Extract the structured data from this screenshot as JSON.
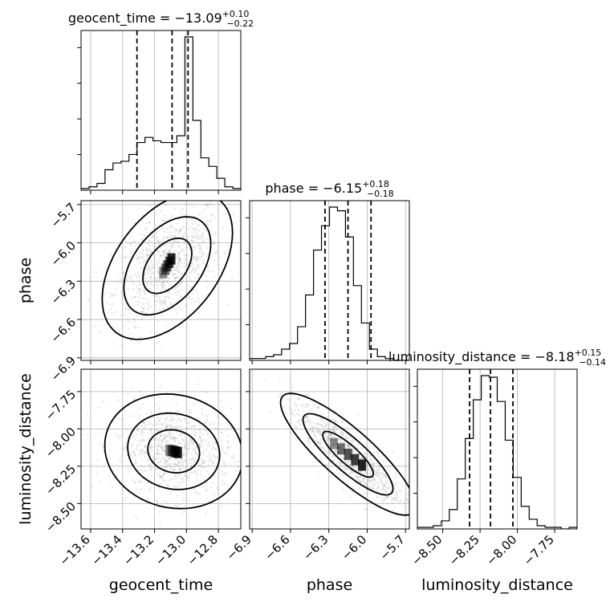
{
  "chart_data": {
    "type": "corner",
    "parameters": [
      "geocent_time",
      "phase",
      "luminosity_distance"
    ],
    "titles": [
      {
        "text": "geocent_time = −13.09",
        "sup": "+0.10",
        "sub": "−0.22"
      },
      {
        "text": "phase = −6.15",
        "sup": "+0.18",
        "sub": "−0.18"
      },
      {
        "text": "luminosity_distance = −8.18",
        "sup": "+0.15",
        "sub": "−0.14"
      }
    ],
    "ranges": [
      [
        -13.66,
        -12.66
      ],
      [
        -6.92,
        -5.67
      ],
      [
        -8.67,
        -7.6
      ]
    ],
    "ticks": {
      "geocent_time": {
        "values": [
          -13.6,
          -13.4,
          -13.2,
          -13.0,
          -12.8
        ],
        "labels": [
          "−13.6",
          "−13.4",
          "−13.2",
          "−13.0",
          "−12.8"
        ]
      },
      "phase": {
        "values": [
          -6.9,
          -6.6,
          -6.3,
          -6.0,
          -5.7
        ],
        "labels": [
          "−6.9",
          "−6.6",
          "−6.3",
          "−6.0",
          "−5.7"
        ]
      },
      "luminosity_distance": {
        "values": [
          -8.5,
          -8.25,
          -8.0,
          -7.75
        ],
        "labels": [
          "−8.50",
          "−8.25",
          "−8.00",
          "−7.75"
        ]
      }
    },
    "quantiles": [
      [
        -13.31,
        -13.09,
        -12.99
      ],
      [
        -6.33,
        -6.15,
        -5.97
      ],
      [
        -8.32,
        -8.18,
        -8.03
      ]
    ],
    "histograms": [
      {
        "edges_start": -13.66,
        "bin_width": 0.05,
        "counts": [
          1,
          2,
          4,
          12,
          16,
          17,
          21,
          28,
          31,
          29,
          28,
          28,
          32,
          90,
          41,
          19,
          14,
          7,
          2,
          1
        ]
      },
      {
        "edges_start": -6.92,
        "bin_width": 0.0625,
        "counts": [
          1,
          1,
          2,
          3,
          6,
          9,
          18,
          35,
          59,
          72,
          82,
          80,
          66,
          40,
          20,
          6,
          2,
          1,
          0,
          0
        ]
      },
      {
        "edges_start": -8.67,
        "bin_width": 0.0535,
        "counts": [
          1,
          1,
          2,
          5,
          12,
          31,
          56,
          80,
          95,
          94,
          79,
          55,
          32,
          14,
          6,
          2,
          1,
          1,
          0,
          1
        ]
      }
    ],
    "grid": true
  }
}
